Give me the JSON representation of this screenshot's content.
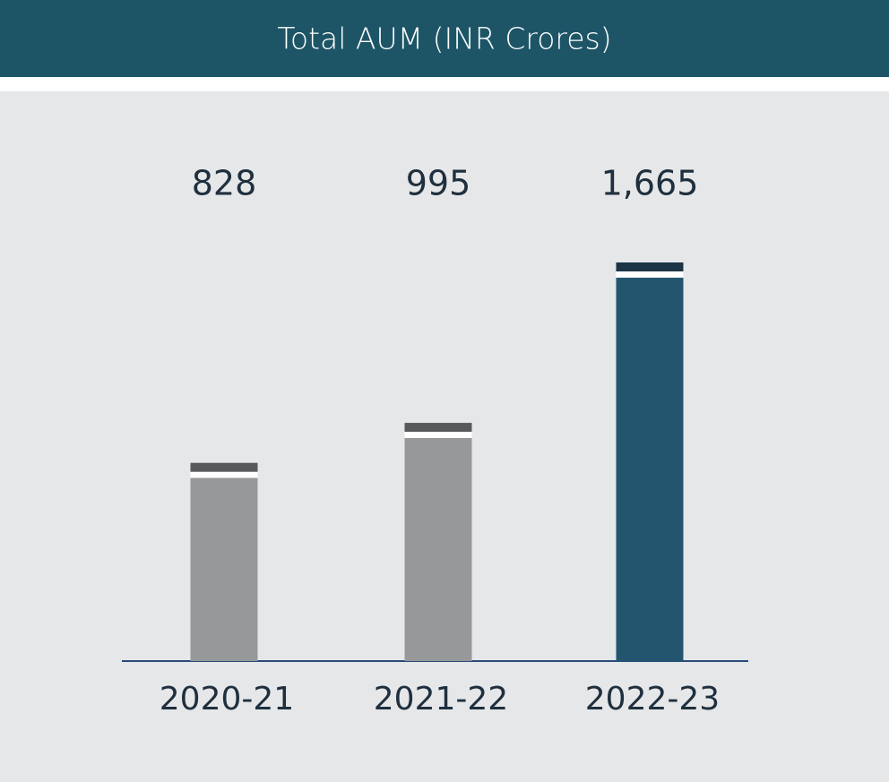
{
  "chart_data": {
    "type": "bar",
    "title": "Total AUM (INR Crores)",
    "categories": [
      "2020-21",
      "2021-22",
      "2022-23"
    ],
    "values": [
      828,
      995,
      1665
    ],
    "value_labels": [
      "828",
      "995",
      "1,665"
    ],
    "colors": [
      "#97989a",
      "#97989a",
      "#23566e"
    ],
    "cap_colors": [
      "#58595b",
      "#58595b",
      "#1c3446"
    ]
  }
}
